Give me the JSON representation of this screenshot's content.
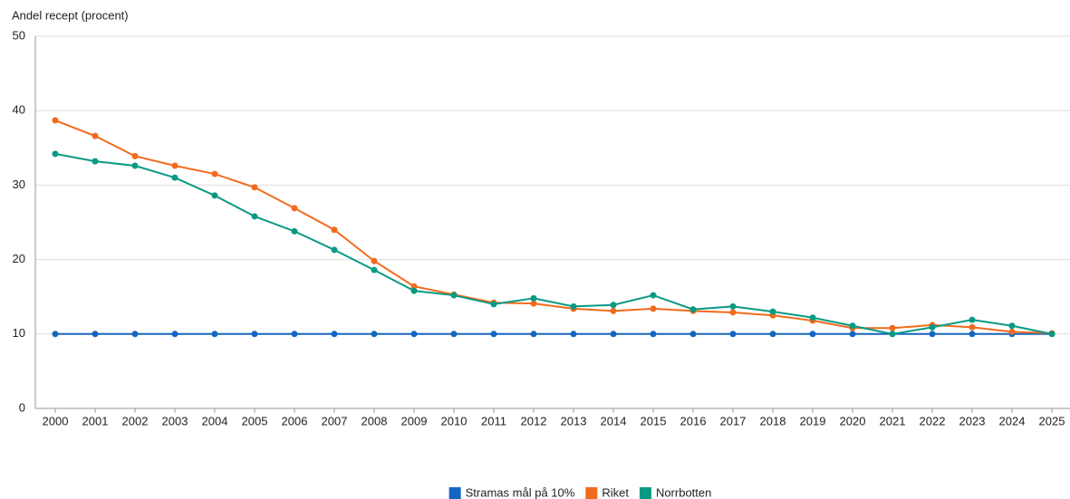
{
  "chart_data": {
    "type": "line",
    "y_label": "Andel recept (procent)",
    "categories": [
      "2000",
      "2001",
      "2002",
      "2003",
      "2004",
      "2005",
      "2006",
      "2007",
      "2008",
      "2009",
      "2010",
      "2011",
      "2012",
      "2013",
      "2014",
      "2015",
      "2016",
      "2017",
      "2018",
      "2019",
      "2020",
      "2021",
      "2022",
      "2023",
      "2024",
      "2025"
    ],
    "series": [
      {
        "name": "Stramas mål på 10%",
        "color": "#1565c0",
        "values": [
          10,
          10,
          10,
          10,
          10,
          10,
          10,
          10,
          10,
          10,
          10,
          10,
          10,
          10,
          10,
          10,
          10,
          10,
          10,
          10,
          10,
          10,
          10,
          10,
          10,
          10
        ]
      },
      {
        "name": "Riket",
        "color": "#f26b1d",
        "values": [
          38.7,
          36.6,
          33.9,
          32.6,
          31.5,
          29.7,
          26.9,
          24.0,
          19.8,
          16.4,
          15.3,
          14.2,
          14.1,
          13.4,
          13.1,
          13.4,
          13.1,
          12.9,
          12.5,
          11.8,
          10.8,
          10.8,
          11.2,
          10.9,
          10.3,
          10.1
        ]
      },
      {
        "name": "Norrbotten",
        "color": "#0a9a84",
        "values": [
          34.2,
          33.2,
          32.6,
          31.0,
          28.6,
          25.8,
          23.8,
          21.3,
          18.6,
          15.8,
          15.2,
          14.0,
          14.8,
          13.7,
          13.9,
          15.2,
          13.3,
          13.7,
          13.0,
          12.2,
          11.1,
          10.0,
          10.9,
          11.9,
          11.1,
          10.0
        ]
      }
    ],
    "ylim": [
      0,
      50
    ],
    "yticks": [
      0,
      10,
      20,
      30,
      40,
      50
    ],
    "grid": true,
    "legend": "bottom"
  }
}
